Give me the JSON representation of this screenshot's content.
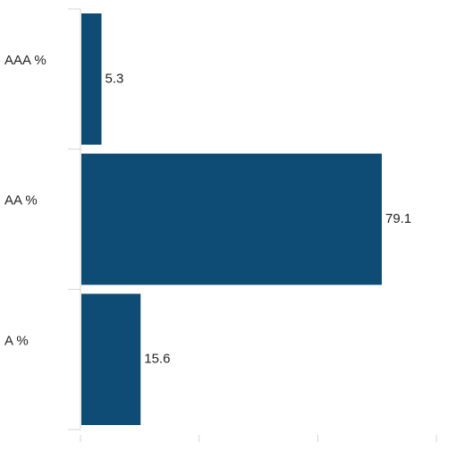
{
  "chart_data": {
    "type": "bar",
    "orientation": "horizontal",
    "categories": [
      "AAA %",
      "AA %",
      "A %"
    ],
    "values": [
      5.3,
      79.1,
      15.6
    ],
    "data_labels": [
      "5.3",
      "79.1",
      "15.6"
    ],
    "xlim": [
      0,
      100
    ],
    "grid": false,
    "bar_color": "#0f4c75",
    "title": "",
    "xlabel": "",
    "ylabel": ""
  }
}
